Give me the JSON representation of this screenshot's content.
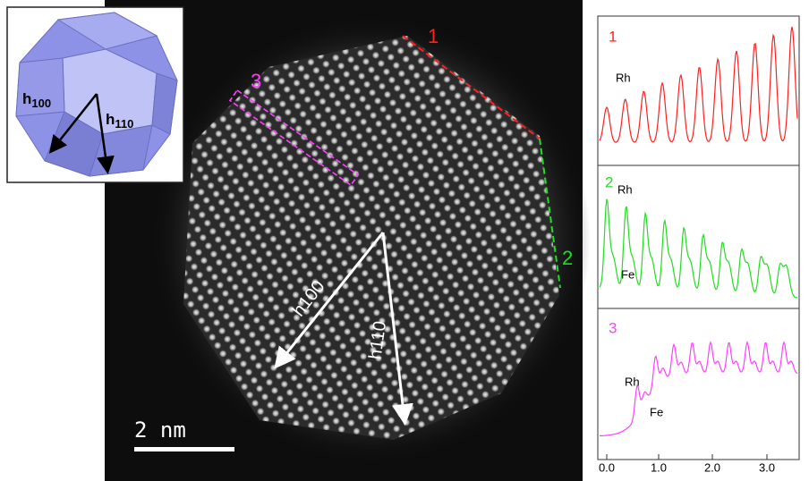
{
  "inset": {
    "arrows": [
      {
        "symbol": "h",
        "subscript": "100"
      },
      {
        "symbol": "h",
        "subscript": "110"
      }
    ]
  },
  "image": {
    "facet_labels": [
      "1",
      "2",
      "3"
    ],
    "arrows": [
      "h100",
      "h110"
    ],
    "scale_bar": "2 nm"
  },
  "profiles": [
    {
      "label": "1",
      "annotations": [
        "Rh"
      ]
    },
    {
      "label": "2",
      "annotations": [
        "Rh",
        "Fe"
      ]
    },
    {
      "label": "3",
      "annotations": [
        "Rh",
        "Fe"
      ]
    }
  ],
  "x_axis": {
    "ticks": [
      "0.0",
      "1.0",
      "2.0",
      "3.0"
    ]
  }
}
